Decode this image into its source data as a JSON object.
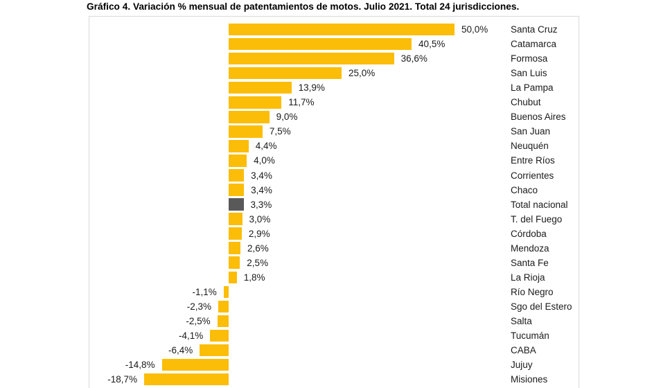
{
  "title": "Gráfico 4. Variación % mensual de patentamientos de motos. Julio 2021. Total 24 jurisdicciones.",
  "chart_data": {
    "type": "bar",
    "orientation": "horizontal",
    "title": "Gráfico 4. Variación % mensual de patentamientos de motos. Julio 2021. Total 24 jurisdicciones.",
    "categories": [
      "Santa Cruz",
      "Catamarca",
      "Formosa",
      "San Luis",
      "La Pampa",
      "Chubut",
      "Buenos Aires",
      "San Juan",
      "Neuquén",
      "Entre Ríos",
      "Corrientes",
      "Chaco",
      "Total nacional",
      "T. del Fuego",
      "Córdoba",
      "Mendoza",
      "Santa Fe",
      "La Rioja",
      "Río Negro",
      "Sgo del Estero",
      "Salta",
      "Tucumán",
      "CABA",
      "Jujuy",
      "Misiones"
    ],
    "values": [
      50.0,
      40.5,
      36.6,
      25.0,
      13.9,
      11.7,
      9.0,
      7.5,
      4.4,
      4.0,
      3.4,
      3.4,
      3.3,
      3.0,
      2.9,
      2.6,
      2.5,
      1.8,
      -1.1,
      -2.3,
      -2.5,
      -4.1,
      -6.4,
      -14.8,
      -18.7
    ],
    "value_labels": [
      "50,0%",
      "40,5%",
      "36,6%",
      "25,0%",
      "13,9%",
      "11,7%",
      "9,0%",
      "7,5%",
      "4,4%",
      "4,0%",
      "3,4%",
      "3,4%",
      "3,3%",
      "3,0%",
      "2,9%",
      "2,6%",
      "2,5%",
      "1,8%",
      "-1,1%",
      "-2,3%",
      "-2,5%",
      "-4,1%",
      "-6,4%",
      "-14,8%",
      "-18,7%"
    ],
    "highlight_category": "Total nacional",
    "colors": {
      "bar": "#FBBD08",
      "highlight_bar": "#595959",
      "text": "#1A1A1A",
      "border": "#D9D9D9"
    },
    "xlim": [
      -20,
      52
    ],
    "legend": false,
    "gridlines": false
  }
}
